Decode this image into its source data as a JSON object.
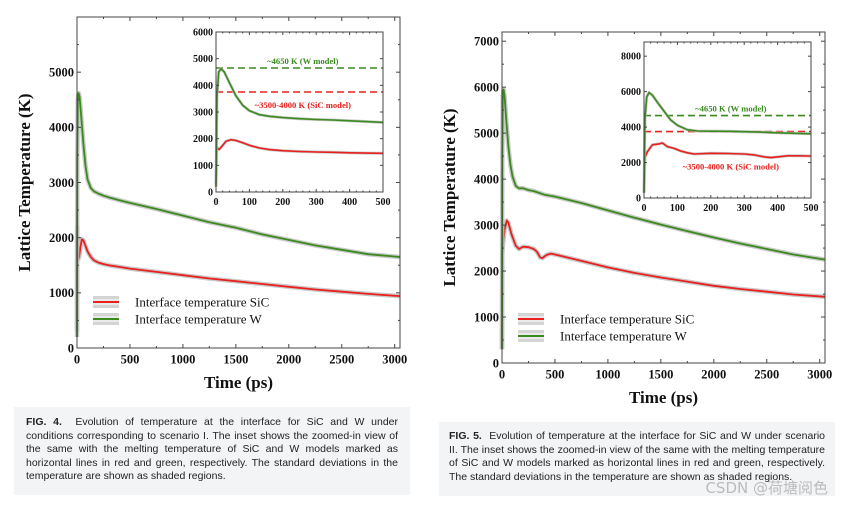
{
  "chart_data": [
    {
      "type": "line",
      "id": "fig4-main",
      "title": "",
      "xlabel": "Time (ps)",
      "ylabel": "Lattice Temperature (K)",
      "xlim": [
        0,
        3050
      ],
      "ylim": [
        0,
        6000
      ],
      "xticks": [
        0,
        500,
        1000,
        1500,
        2000,
        2500,
        3000
      ],
      "yticks": [
        0,
        1000,
        2000,
        3000,
        4000,
        5000
      ],
      "legend_position": "bottom-left",
      "series": [
        {
          "name": "Interface temperature SiC",
          "color": "#e8201e",
          "x": [
            0,
            2,
            5,
            10,
            20,
            30,
            45,
            60,
            80,
            100,
            130,
            160,
            200,
            250,
            300,
            400,
            500,
            750,
            1000,
            1250,
            1500,
            1750,
            2000,
            2250,
            2500,
            2750,
            3050
          ],
          "y": [
            300,
            2200,
            1700,
            1600,
            1650,
            1800,
            1970,
            1950,
            1850,
            1750,
            1650,
            1590,
            1550,
            1520,
            1500,
            1470,
            1440,
            1380,
            1320,
            1260,
            1210,
            1160,
            1110,
            1060,
            1020,
            980,
            940
          ]
        },
        {
          "name": "Interface temperature W",
          "color": "#3a8a1e",
          "x": [
            0,
            3,
            8,
            15,
            25,
            40,
            60,
            80,
            100,
            130,
            160,
            200,
            250,
            300,
            400,
            500,
            750,
            1000,
            1250,
            1500,
            1750,
            2000,
            2250,
            2500,
            2750,
            3050
          ],
          "y": [
            200,
            3500,
            4500,
            4620,
            4550,
            4200,
            3700,
            3300,
            3050,
            2900,
            2840,
            2800,
            2760,
            2730,
            2680,
            2630,
            2520,
            2400,
            2280,
            2180,
            2060,
            1960,
            1860,
            1780,
            1700,
            1650
          ]
        }
      ]
    },
    {
      "type": "line",
      "id": "fig4-inset",
      "xlim": [
        0,
        500
      ],
      "ylim": [
        0,
        6000
      ],
      "xticks": [
        0,
        100,
        200,
        300,
        400,
        500
      ],
      "yticks": [
        0,
        1000,
        2000,
        3000,
        4000,
        5000,
        6000
      ],
      "hlines": [
        {
          "y": 4650,
          "color": "#3a8a1e",
          "label": "~4650 K (W model)"
        },
        {
          "y": 3750,
          "color": "#e8201e",
          "label": "~3500-4000 K (SiC model)"
        }
      ],
      "series": [
        {
          "name": "Interface temperature SiC",
          "color": "#e8201e",
          "x": [
            0,
            2,
            5,
            10,
            20,
            30,
            45,
            60,
            80,
            100,
            130,
            160,
            200,
            250,
            300,
            350,
            400,
            450,
            500
          ],
          "y": [
            300,
            1700,
            1620,
            1600,
            1750,
            1900,
            1960,
            1930,
            1850,
            1750,
            1650,
            1590,
            1550,
            1520,
            1500,
            1490,
            1470,
            1460,
            1450
          ]
        },
        {
          "name": "Interface temperature W",
          "color": "#3a8a1e",
          "x": [
            0,
            3,
            8,
            15,
            25,
            40,
            60,
            80,
            100,
            130,
            160,
            200,
            250,
            300,
            350,
            400,
            450,
            500
          ],
          "y": [
            200,
            3600,
            4500,
            4620,
            4500,
            4100,
            3600,
            3250,
            3050,
            2900,
            2840,
            2790,
            2750,
            2720,
            2700,
            2670,
            2640,
            2610
          ]
        }
      ]
    },
    {
      "type": "line",
      "id": "fig5-main",
      "title": "",
      "xlabel": "Time (ps)",
      "ylabel": "Lattice Temperature (K)",
      "xlim": [
        0,
        3050
      ],
      "ylim": [
        0,
        7200
      ],
      "xticks": [
        0,
        500,
        1000,
        1500,
        2000,
        2500,
        3000
      ],
      "yticks": [
        0,
        1000,
        2000,
        3000,
        4000,
        5000,
        6000,
        7000
      ],
      "legend_position": "bottom-left",
      "series": [
        {
          "name": "Interface temperature SiC",
          "color": "#e8201e",
          "x": [
            0,
            3,
            10,
            25,
            45,
            60,
            90,
            130,
            160,
            200,
            250,
            300,
            330,
            360,
            380,
            420,
            460,
            500,
            750,
            1000,
            1250,
            1500,
            1750,
            2000,
            2250,
            2500,
            2750,
            3050
          ],
          "y": [
            300,
            2400,
            2600,
            2900,
            3100,
            3050,
            2800,
            2550,
            2480,
            2530,
            2520,
            2480,
            2420,
            2300,
            2280,
            2350,
            2380,
            2360,
            2220,
            2080,
            1960,
            1860,
            1770,
            1680,
            1610,
            1550,
            1490,
            1440
          ]
        },
        {
          "name": "Interface temperature W",
          "color": "#3a8a1e",
          "x": [
            0,
            3,
            8,
            15,
            25,
            40,
            60,
            80,
            100,
            130,
            160,
            200,
            250,
            300,
            350,
            400,
            500,
            750,
            1000,
            1250,
            1500,
            1750,
            2000,
            2250,
            2500,
            2750,
            3050
          ],
          "y": [
            300,
            4500,
            5800,
            5950,
            5800,
            5300,
            4700,
            4300,
            4050,
            3850,
            3800,
            3800,
            3760,
            3740,
            3700,
            3660,
            3620,
            3480,
            3320,
            3160,
            3010,
            2870,
            2730,
            2600,
            2480,
            2360,
            2250
          ]
        }
      ]
    },
    {
      "type": "line",
      "id": "fig5-inset",
      "xlim": [
        0,
        500
      ],
      "ylim": [
        0,
        8800
      ],
      "xticks": [
        0,
        100,
        200,
        300,
        400,
        500
      ],
      "yticks": [
        0,
        2000,
        4000,
        6000,
        8000
      ],
      "hlines": [
        {
          "y": 4650,
          "color": "#3a8a1e",
          "label": "~4650 K (W model)"
        },
        {
          "y": 3750,
          "color": "#e8201e",
          "label": "~3500-4000 K (SiC model)"
        }
      ],
      "series": [
        {
          "name": "Interface temperature SiC",
          "color": "#e8201e",
          "x": [
            0,
            3,
            10,
            25,
            45,
            55,
            70,
            90,
            110,
            130,
            150,
            200,
            250,
            300,
            330,
            360,
            380,
            400,
            430,
            460,
            500
          ],
          "y": [
            300,
            2300,
            2600,
            3000,
            3050,
            3100,
            2900,
            2800,
            2650,
            2550,
            2480,
            2520,
            2510,
            2480,
            2430,
            2320,
            2280,
            2320,
            2380,
            2380,
            2370
          ]
        },
        {
          "name": "Interface temperature W",
          "color": "#3a8a1e",
          "x": [
            0,
            3,
            8,
            15,
            25,
            40,
            60,
            80,
            100,
            130,
            160,
            200,
            250,
            300,
            350,
            400,
            450,
            500
          ],
          "y": [
            300,
            4500,
            5700,
            5950,
            5800,
            5400,
            4900,
            4400,
            4100,
            3850,
            3780,
            3770,
            3760,
            3740,
            3720,
            3680,
            3650,
            3620
          ]
        }
      ]
    }
  ],
  "captions": {
    "fig4_label": "FIG. 4.",
    "fig4_text": "Evolution of temperature at the interface for SiC and W under conditions corresponding to scenario I. The inset shows the zoomed-in view of the same with the melting temperature of SiC and W models marked as horizontal lines in red and green, respectively. The standard deviations in the temperature are shown as shaded regions.",
    "fig5_label": "FIG. 5.",
    "fig5_text": "Evolution of temperature at the interface for SiC and W under scenario II. The inset shows the zoomed-in view of the same with the melting temperature of SiC and W models marked as horizontal lines in red and green, respectively. The standard deviations in the temperature are shown as shaded regions."
  },
  "watermark": "CSDN @荷塘阅色",
  "colors": {
    "sic": "#e8201e",
    "w": "#3a8a1e",
    "shade": "#bdbdbd",
    "axis": "#555555"
  }
}
